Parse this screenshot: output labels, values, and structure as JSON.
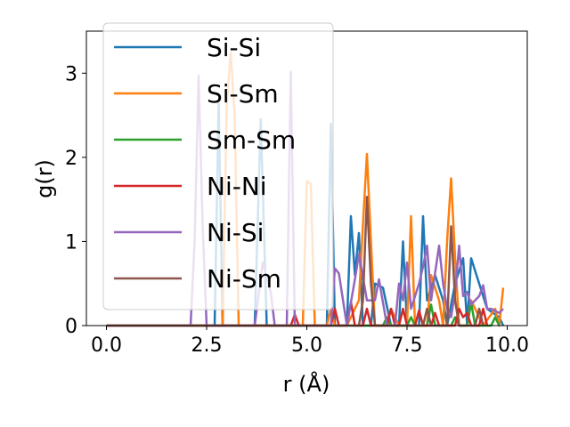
{
  "chart_data": {
    "type": "line",
    "xlabel": "r (Å)",
    "ylabel": "g(r)",
    "xlim": [
      -0.5,
      10.5
    ],
    "ylim": [
      0,
      3.5
    ],
    "xticks": [
      0.0,
      2.5,
      5.0,
      7.5,
      10.0
    ],
    "xtick_labels": [
      "0.0",
      "2.5",
      "5.0",
      "7.5",
      "10.0"
    ],
    "yticks": [
      0,
      1,
      2,
      3
    ],
    "ytick_labels": [
      "0",
      "1",
      "2",
      "3"
    ],
    "grid": false,
    "legend_position": "upper-left",
    "series": [
      {
        "name": "Si-Si",
        "color": "#1f77b4",
        "points": [
          [
            0.0,
            0
          ],
          [
            2.7,
            0
          ],
          [
            2.8,
            2.65
          ],
          [
            2.9,
            0
          ],
          [
            3.7,
            0
          ],
          [
            3.85,
            2.45
          ],
          [
            4.0,
            0
          ],
          [
            5.5,
            0
          ],
          [
            5.6,
            2.4
          ],
          [
            5.7,
            0
          ],
          [
            6.0,
            0
          ],
          [
            6.1,
            1.3
          ],
          [
            6.2,
            0.6
          ],
          [
            6.3,
            1.1
          ],
          [
            6.4,
            0
          ],
          [
            6.6,
            0
          ],
          [
            6.7,
            0.5
          ],
          [
            6.9,
            0.45
          ],
          [
            7.1,
            0
          ],
          [
            7.3,
            0
          ],
          [
            7.4,
            1.0
          ],
          [
            7.5,
            0
          ],
          [
            7.8,
            0
          ],
          [
            7.9,
            1.3
          ],
          [
            8.0,
            0.3
          ],
          [
            8.2,
            0.6
          ],
          [
            8.4,
            0.3
          ],
          [
            8.5,
            0
          ],
          [
            8.7,
            0.5
          ],
          [
            8.9,
            0.8
          ],
          [
            9.0,
            0
          ],
          [
            9.1,
            0.8
          ],
          [
            9.3,
            0.5
          ],
          [
            9.5,
            0.2
          ],
          [
            9.8,
            0.1
          ],
          [
            9.9,
            0
          ]
        ]
      },
      {
        "name": "Si-Sm",
        "color": "#ff7f0e",
        "points": [
          [
            0.0,
            0
          ],
          [
            2.9,
            0
          ],
          [
            3.0,
            2.6
          ],
          [
            3.1,
            3.25
          ],
          [
            3.2,
            2.5
          ],
          [
            3.3,
            0
          ],
          [
            4.9,
            0
          ],
          [
            5.0,
            1.72
          ],
          [
            5.1,
            1.68
          ],
          [
            5.2,
            0
          ],
          [
            5.5,
            0
          ],
          [
            5.6,
            0.2
          ],
          [
            5.7,
            0
          ],
          [
            6.0,
            0
          ],
          [
            6.1,
            0.1
          ],
          [
            6.3,
            0.3
          ],
          [
            6.4,
            1.2
          ],
          [
            6.5,
            2.04
          ],
          [
            6.6,
            1.0
          ],
          [
            6.7,
            0
          ],
          [
            7.0,
            0
          ],
          [
            7.1,
            0.2
          ],
          [
            7.3,
            0
          ],
          [
            7.5,
            0
          ],
          [
            7.6,
            1.3
          ],
          [
            7.7,
            0
          ],
          [
            8.0,
            0
          ],
          [
            8.1,
            0.6
          ],
          [
            8.3,
            0.3
          ],
          [
            8.4,
            0
          ],
          [
            8.5,
            1.0
          ],
          [
            8.6,
            1.75
          ],
          [
            8.7,
            0.8
          ],
          [
            8.8,
            0
          ],
          [
            9.0,
            0
          ],
          [
            9.1,
            0.3
          ],
          [
            9.4,
            0
          ],
          [
            9.7,
            0.2
          ],
          [
            9.8,
            0
          ],
          [
            9.9,
            0.45
          ]
        ]
      },
      {
        "name": "Sm-Sm",
        "color": "#2ca02c",
        "points": [
          [
            0.0,
            0
          ],
          [
            6.9,
            0
          ],
          [
            7.0,
            0.1
          ],
          [
            7.1,
            0
          ],
          [
            7.5,
            0
          ],
          [
            7.6,
            0.1
          ],
          [
            7.7,
            0
          ],
          [
            8.0,
            0
          ],
          [
            8.1,
            0.25
          ],
          [
            8.2,
            0
          ],
          [
            8.6,
            0
          ],
          [
            8.7,
            0.1
          ],
          [
            8.8,
            0
          ],
          [
            9.0,
            0
          ],
          [
            9.1,
            0.27
          ],
          [
            9.2,
            0
          ],
          [
            9.6,
            0
          ],
          [
            9.7,
            0.1
          ],
          [
            9.8,
            0
          ]
        ]
      },
      {
        "name": "Ni-Ni",
        "color": "#d62728",
        "points": [
          [
            0.0,
            0
          ],
          [
            4.6,
            0
          ],
          [
            4.7,
            0.13
          ],
          [
            4.8,
            0
          ],
          [
            5.6,
            0
          ],
          [
            5.7,
            0.2
          ],
          [
            5.8,
            0
          ],
          [
            6.0,
            0
          ],
          [
            6.1,
            0.28
          ],
          [
            6.2,
            0
          ],
          [
            6.4,
            0
          ],
          [
            6.5,
            0.2
          ],
          [
            6.6,
            0
          ],
          [
            7.0,
            0
          ],
          [
            7.1,
            0.2
          ],
          [
            7.2,
            0
          ],
          [
            7.3,
            0
          ],
          [
            7.4,
            0.2
          ],
          [
            7.5,
            0
          ],
          [
            7.7,
            0
          ],
          [
            7.8,
            0.18
          ],
          [
            7.9,
            0
          ],
          [
            8.1,
            0
          ],
          [
            8.2,
            0.15
          ],
          [
            8.3,
            0
          ],
          [
            8.7,
            0
          ],
          [
            8.8,
            0.2
          ],
          [
            8.9,
            0.1
          ],
          [
            9.0,
            0.15
          ],
          [
            9.1,
            0
          ],
          [
            9.3,
            0
          ],
          [
            9.4,
            0.2
          ],
          [
            9.5,
            0
          ]
        ]
      },
      {
        "name": "Ni-Si",
        "color": "#9467bd",
        "points": [
          [
            0.0,
            0
          ],
          [
            2.1,
            0
          ],
          [
            2.2,
            1.0
          ],
          [
            2.3,
            2.97
          ],
          [
            2.4,
            1.2
          ],
          [
            2.5,
            0
          ],
          [
            3.7,
            0
          ],
          [
            3.9,
            0.75
          ],
          [
            4.1,
            0.4
          ],
          [
            4.2,
            0
          ],
          [
            4.5,
            0
          ],
          [
            4.6,
            3.02
          ],
          [
            4.7,
            0
          ],
          [
            5.6,
            0
          ],
          [
            5.7,
            0.68
          ],
          [
            5.8,
            0.62
          ],
          [
            6.0,
            0
          ],
          [
            6.2,
            0.55
          ],
          [
            6.3,
            0.85
          ],
          [
            6.5,
            0.3
          ],
          [
            6.7,
            0.3
          ],
          [
            6.8,
            0.55
          ],
          [
            7.0,
            0
          ],
          [
            7.2,
            0
          ],
          [
            7.3,
            0.5
          ],
          [
            7.4,
            0.3
          ],
          [
            7.5,
            0.75
          ],
          [
            7.6,
            0.2
          ],
          [
            7.8,
            0.5
          ],
          [
            7.9,
            0.7
          ],
          [
            8.0,
            0.95
          ],
          [
            8.1,
            0.3
          ],
          [
            8.3,
            0.95
          ],
          [
            8.4,
            0.5
          ],
          [
            8.5,
            0.2
          ],
          [
            8.6,
            0.1
          ],
          [
            8.7,
            0.4
          ],
          [
            8.8,
            0.95
          ],
          [
            8.9,
            0.35
          ],
          [
            9.0,
            0.4
          ],
          [
            9.1,
            0.25
          ],
          [
            9.3,
            0.35
          ],
          [
            9.4,
            0.48
          ],
          [
            9.5,
            0.2
          ],
          [
            9.6,
            0.2
          ],
          [
            9.8,
            0.15
          ],
          [
            9.9,
            0.2
          ]
        ]
      },
      {
        "name": "Ni-Sm",
        "color": "#8c564b",
        "points": [
          [
            0.0,
            0
          ],
          [
            6.3,
            0
          ],
          [
            6.4,
            0.3
          ],
          [
            6.5,
            1.53
          ],
          [
            6.6,
            0.5
          ],
          [
            6.7,
            0
          ],
          [
            7.9,
            0
          ],
          [
            8.0,
            0.2
          ],
          [
            8.1,
            0
          ],
          [
            8.5,
            0
          ],
          [
            8.6,
            1.18
          ],
          [
            8.7,
            0.3
          ],
          [
            8.8,
            0
          ],
          [
            9.2,
            0
          ],
          [
            9.3,
            0.2
          ],
          [
            9.4,
            0
          ]
        ]
      }
    ]
  }
}
